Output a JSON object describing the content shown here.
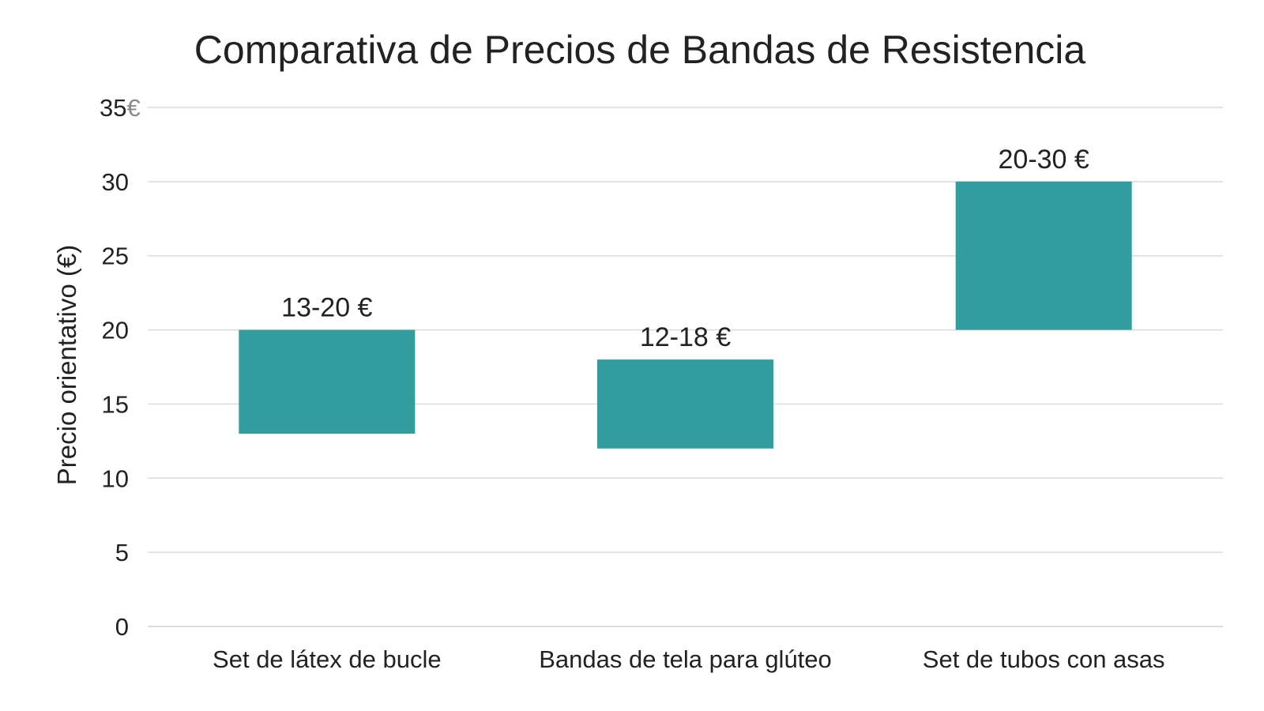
{
  "chart_data": {
    "type": "bar",
    "title": "Comparativa de Precios de Bandas de Resistencia",
    "ylabel": "Precio orientativo (€)",
    "xlabel": "",
    "categories": [
      "Set de látex de bucle",
      "Bandas de tela para glúteo",
      "Set de tubos con asas"
    ],
    "ranges": [
      [
        13,
        20
      ],
      [
        12,
        18
      ],
      [
        20,
        30
      ]
    ],
    "data_labels": [
      "13-20 €",
      "12-18 €",
      "20-30 €"
    ],
    "ylim": [
      0,
      35
    ],
    "yticks": [
      0,
      5,
      10,
      15,
      20,
      25,
      30,
      35
    ],
    "top_tick_unit": "€",
    "grid": true,
    "bar_color": "#339c9e"
  }
}
